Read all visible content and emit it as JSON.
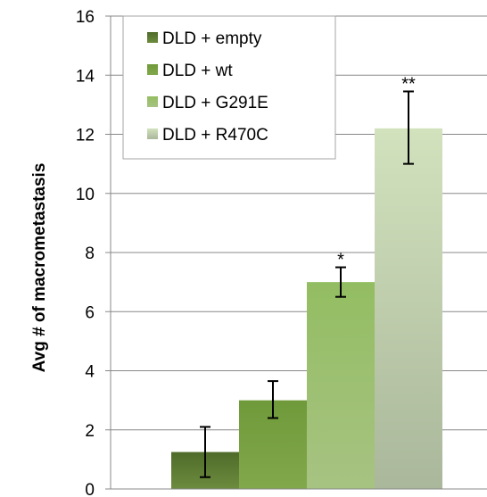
{
  "chart_data": {
    "type": "bar",
    "title": "",
    "xlabel": "",
    "ylabel": "Avg # of macrometastasis",
    "ylim": [
      0,
      16
    ],
    "yticks": [
      0,
      2,
      4,
      6,
      8,
      10,
      12,
      14,
      16
    ],
    "grid": true,
    "legend_position": "top-left",
    "series": [
      {
        "name": "DLD + empty",
        "value": 1.25,
        "error_low": 0.4,
        "error_high": 2.1,
        "annotation": "",
        "color_top": "#4f6b2a",
        "color_bottom": "#6d8c3e"
      },
      {
        "name": "DLD + wt",
        "value": 3.0,
        "error_low": 2.4,
        "error_high": 3.65,
        "annotation": "",
        "color_top": "#6f9a3a",
        "color_bottom": "#82a84c"
      },
      {
        "name": "DLD + G291E",
        "value": 7.0,
        "error_low": 6.5,
        "error_high": 7.5,
        "annotation": "*",
        "color_top": "#93bd62",
        "color_bottom": "#a7c382"
      },
      {
        "name": "DLD + R470C",
        "value": 12.2,
        "error_low": 11.0,
        "error_high": 13.45,
        "annotation": "**",
        "color_top": "#d2e2bd",
        "color_bottom": "#aab79b"
      }
    ]
  }
}
